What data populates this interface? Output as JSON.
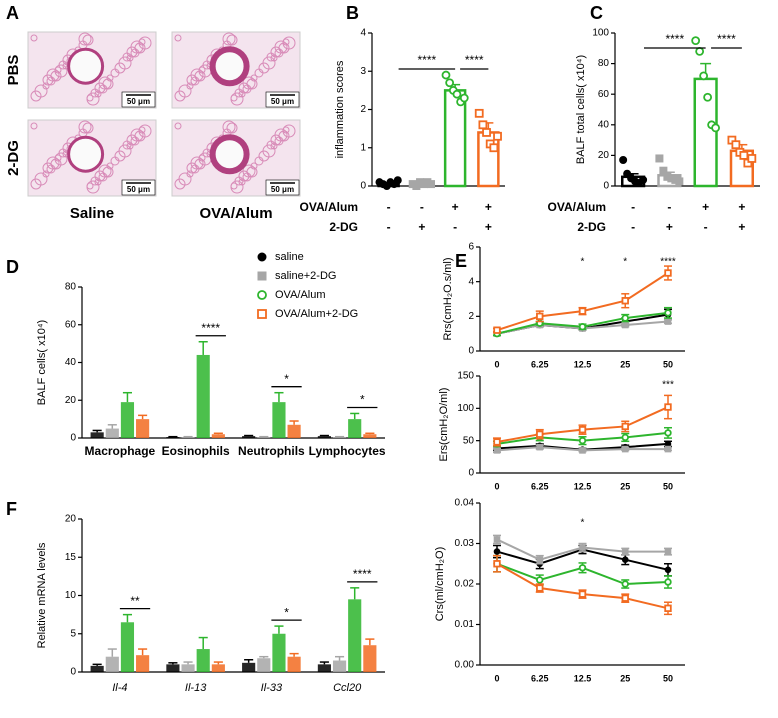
{
  "chart_data": [
    {
      "type": "image_grid",
      "panel": "A",
      "rows": [
        "PBS",
        "2-DG"
      ],
      "columns": [
        "Saline",
        "OVA/Alum"
      ],
      "scale_bar": "50 μm"
    },
    {
      "type": "bar",
      "panel": "B",
      "ylabel": "inflammation scores",
      "ylim": [
        0,
        4
      ],
      "yticks": [
        0,
        1,
        2,
        3,
        4
      ],
      "colors": [
        "#000000",
        "#a6a6a6",
        "#2db52d",
        "#f26b21"
      ],
      "markers": [
        "filled-circle",
        "filled-square",
        "open-circle",
        "open-square"
      ],
      "values": [
        0.05,
        0.05,
        2.5,
        1.4
      ],
      "errors": [
        0.03,
        0.03,
        0.15,
        0.25
      ],
      "points": [
        [
          0.1,
          0.05,
          0.0,
          0.1,
          0.05,
          0.15
        ],
        [
          0.05,
          0.0,
          0.1,
          0.05,
          0.1,
          0.05
        ],
        [
          2.9,
          2.7,
          2.5,
          2.4,
          2.2,
          2.3
        ],
        [
          1.9,
          1.6,
          1.4,
          1.1,
          1.0,
          1.3
        ]
      ],
      "conditions": [
        {
          "name": "OVA/Alum",
          "values": [
            "-",
            "-",
            "+",
            "+"
          ]
        },
        {
          "name": "2-DG",
          "values": [
            "-",
            "+",
            "-",
            "+"
          ]
        }
      ],
      "significance": [
        "****",
        "****"
      ]
    },
    {
      "type": "bar",
      "panel": "C",
      "ylabel": "BALF total cells( x10⁴)",
      "ylim": [
        0,
        100
      ],
      "yticks": [
        0,
        20,
        40,
        60,
        80,
        100
      ],
      "colors": [
        "#000000",
        "#a6a6a6",
        "#2db52d",
        "#f26b21"
      ],
      "markers": [
        "filled-circle",
        "filled-square",
        "open-circle",
        "open-square"
      ],
      "values": [
        6,
        7,
        70,
        23
      ],
      "errors": [
        2,
        2,
        10,
        4
      ],
      "points": [
        [
          17,
          8,
          5,
          3,
          2,
          4
        ],
        [
          18,
          10,
          6,
          5,
          4,
          3
        ],
        [
          95,
          88,
          72,
          58,
          40,
          38
        ],
        [
          30,
          27,
          22,
          20,
          15,
          18
        ]
      ],
      "conditions": [
        {
          "name": "OVA/Alum",
          "values": [
            "-",
            "-",
            "+",
            "+"
          ]
        },
        {
          "name": "2-DG",
          "values": [
            "-",
            "+",
            "-",
            "+"
          ]
        }
      ],
      "significance": [
        "****",
        "****"
      ]
    },
    {
      "type": "grouped_bar",
      "panel": "D",
      "ylabel": "BALF  cells( x10⁴)",
      "ylim": [
        0,
        80
      ],
      "yticks": [
        0,
        20,
        40,
        60,
        80
      ],
      "categories": [
        "Macrophage",
        "Eosinophils",
        "Neutrophils",
        "Lymphocytes"
      ],
      "legend": true,
      "series": [
        {
          "name": "saline",
          "color": "#000000",
          "marker": "filled-circle",
          "values": [
            3,
            0.5,
            1,
            1
          ],
          "errors": [
            1,
            0.2,
            0.3,
            0.3
          ]
        },
        {
          "name": "saline+2-DG",
          "color": "#a6a6a6",
          "marker": "filled-square",
          "values": [
            5,
            0.5,
            0.5,
            0.5
          ],
          "errors": [
            2,
            0.2,
            0.2,
            0.2
          ]
        },
        {
          "name": "OVA/Alum",
          "color": "#2db52d",
          "marker": "open-circle",
          "values": [
            19,
            44,
            19,
            10
          ],
          "errors": [
            5,
            7,
            5,
            3
          ]
        },
        {
          "name": "OVA/Alum+2-DG",
          "color": "#f26b21",
          "marker": "open-square",
          "values": [
            10,
            2,
            7,
            2
          ],
          "errors": [
            2,
            0.5,
            2,
            0.5
          ]
        }
      ],
      "annotations": [
        null,
        "****",
        "*",
        "*"
      ]
    },
    {
      "type": "line",
      "panel": "E",
      "ylabel": "Rrs(cmH₂O.s/ml)",
      "ylim": [
        0,
        6
      ],
      "yticks": [
        0,
        2,
        4,
        6
      ],
      "categories": [
        "0",
        "6.25",
        "12.5",
        "25",
        "50"
      ],
      "series": [
        {
          "name": "saline",
          "color": "#000000",
          "marker": "filled-circle",
          "values": [
            1,
            1.5,
            1.3,
            1.7,
            2.1
          ],
          "errors": [
            0.1,
            0.1,
            0.1,
            0.2,
            0.3
          ]
        },
        {
          "name": "saline+2-DG",
          "color": "#a6a6a6",
          "marker": "filled-square",
          "values": [
            1,
            1.5,
            1.3,
            1.5,
            1.7
          ],
          "errors": [
            0.1,
            0.1,
            0.1,
            0.1,
            0.1
          ]
        },
        {
          "name": "OVA/Alum",
          "color": "#2db52d",
          "marker": "open-circle",
          "values": [
            1,
            1.6,
            1.4,
            1.9,
            2.2
          ],
          "errors": [
            0.1,
            0.1,
            0.15,
            0.2,
            0.3
          ]
        },
        {
          "name": "OVA/Alum+2-DG",
          "color": "#f26b21",
          "marker": "open-square",
          "values": [
            1.2,
            2,
            2.3,
            2.9,
            4.5
          ],
          "errors": [
            0.1,
            0.3,
            0.2,
            0.4,
            0.4
          ]
        }
      ],
      "annotations": [
        null,
        null,
        "*",
        "*",
        "****"
      ]
    },
    {
      "type": "line",
      "ylabel": "Ers(cmH₂O/ml)",
      "ylim": [
        0,
        150
      ],
      "yticks": [
        0,
        50,
        100,
        150
      ],
      "categories": [
        "0",
        "6.25",
        "12.5",
        "25",
        "50"
      ],
      "series": [
        {
          "name": "saline",
          "color": "#000000",
          "marker": "filled-circle",
          "values": [
            38,
            42,
            36,
            40,
            45
          ],
          "errors": [
            3,
            3,
            2,
            3,
            4
          ]
        },
        {
          "name": "saline+2-DG",
          "color": "#a6a6a6",
          "marker": "filled-square",
          "values": [
            35,
            40,
            35,
            37,
            37
          ],
          "errors": [
            3,
            3,
            2,
            2,
            2
          ]
        },
        {
          "name": "OVA/Alum",
          "color": "#2db52d",
          "marker": "open-circle",
          "values": [
            45,
            55,
            50,
            55,
            62
          ],
          "errors": [
            4,
            5,
            6,
            6,
            8
          ]
        },
        {
          "name": "OVA/Alum+2-DG",
          "color": "#f26b21",
          "marker": "open-square",
          "values": [
            48,
            60,
            67,
            72,
            102
          ],
          "errors": [
            6,
            7,
            7,
            8,
            18
          ]
        }
      ],
      "annotations": [
        null,
        null,
        null,
        null,
        "***"
      ]
    },
    {
      "type": "line",
      "ylabel": "Crs(ml/cmH₂O)",
      "ylim": [
        0,
        0.04
      ],
      "yticks": [
        {
          "value": 0,
          "label": "0.00"
        },
        0.01,
        0.02,
        0.03,
        0.04
      ],
      "categories": [
        "0",
        "6.25",
        "12.5",
        "25",
        "50"
      ],
      "series": [
        {
          "name": "saline",
          "color": "#000000",
          "marker": "filled-circle",
          "values": [
            0.028,
            0.025,
            0.0285,
            0.026,
            0.0235
          ],
          "errors": [
            0.0015,
            0.0012,
            0.001,
            0.0012,
            0.0015
          ]
        },
        {
          "name": "saline+2-DG",
          "color": "#a6a6a6",
          "marker": "filled-square",
          "values": [
            0.031,
            0.026,
            0.029,
            0.028,
            0.028
          ],
          "errors": [
            0.001,
            0.001,
            0.001,
            0.0008,
            0.0008
          ]
        },
        {
          "name": "OVA/Alum",
          "color": "#2db52d",
          "marker": "open-circle",
          "values": [
            0.025,
            0.021,
            0.024,
            0.02,
            0.0205
          ],
          "errors": [
            0.002,
            0.0012,
            0.0012,
            0.001,
            0.0015
          ]
        },
        {
          "name": "OVA/Alum+2-DG",
          "color": "#f26b21",
          "marker": "open-square",
          "values": [
            0.025,
            0.019,
            0.0175,
            0.0165,
            0.014
          ],
          "errors": [
            0.002,
            0.001,
            0.001,
            0.001,
            0.0015
          ]
        }
      ],
      "annotations": [
        null,
        null,
        "*",
        null,
        null
      ]
    },
    {
      "type": "grouped_bar",
      "panel": "F",
      "ylabel": "Relative mRNA levels",
      "ylim": [
        0,
        20
      ],
      "yticks": [
        0,
        5,
        10,
        15,
        20
      ],
      "categories": [
        "Il-4",
        "Il-13",
        "Il-33",
        "Ccl20"
      ],
      "italic_categories": true,
      "series": [
        {
          "name": "saline",
          "color": "#000000",
          "marker": "filled-circle",
          "values": [
            0.8,
            1,
            1.2,
            1
          ],
          "errors": [
            0.2,
            0.2,
            0.4,
            0.3
          ]
        },
        {
          "name": "saline+2-DG",
          "color": "#a6a6a6",
          "marker": "filled-square",
          "values": [
            2,
            1,
            1.8,
            1.5
          ],
          "errors": [
            1,
            0.3,
            0.2,
            0.5
          ]
        },
        {
          "name": "OVA/Alum",
          "color": "#2db52d",
          "marker": "open-circle",
          "values": [
            6.5,
            3,
            5,
            9.5
          ],
          "errors": [
            1,
            1.5,
            1,
            1.5
          ]
        },
        {
          "name": "OVA/Alum+2-DG",
          "color": "#f26b21",
          "marker": "open-square",
          "values": [
            2.2,
            1,
            2,
            3.5
          ],
          "errors": [
            0.8,
            0.3,
            0.4,
            0.8
          ]
        }
      ],
      "annotations": [
        "**",
        null,
        "*",
        "****"
      ]
    }
  ]
}
